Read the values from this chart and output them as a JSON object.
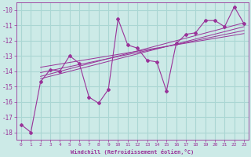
{
  "xlabel": "Windchill (Refroidissement éolien,°C)",
  "ylabel": "",
  "bg_color": "#cceae7",
  "line_color": "#993399",
  "grid_color": "#aad6d3",
  "xlim": [
    -0.5,
    23.5
  ],
  "ylim": [
    -18.5,
    -9.5
  ],
  "yticks": [
    -18,
    -17,
    -16,
    -15,
    -14,
    -13,
    -12,
    -11,
    -10
  ],
  "xticks": [
    0,
    1,
    2,
    3,
    4,
    5,
    6,
    7,
    8,
    9,
    10,
    11,
    12,
    13,
    14,
    15,
    16,
    17,
    18,
    19,
    20,
    21,
    22,
    23
  ],
  "main_x": [
    0,
    1,
    2,
    3,
    4,
    5,
    6,
    7,
    8,
    9,
    10,
    11,
    12,
    13,
    14,
    15,
    16,
    17,
    18,
    19,
    20,
    21,
    22,
    23
  ],
  "main_y": [
    -17.5,
    -18.0,
    -14.7,
    -13.9,
    -14.0,
    -13.0,
    -13.5,
    -15.7,
    -16.1,
    -15.2,
    -10.6,
    -12.3,
    -12.5,
    -13.3,
    -13.4,
    -15.3,
    -12.2,
    -11.6,
    -11.5,
    -10.7,
    -10.7,
    -11.1,
    -9.8,
    -10.9
  ],
  "reg_lines": [
    {
      "x": [
        2,
        23
      ],
      "y": [
        -14.35,
        -10.85
      ]
    },
    {
      "x": [
        2,
        23
      ],
      "y": [
        -14.5,
        -11.1
      ]
    },
    {
      "x": [
        2,
        23
      ],
      "y": [
        -14.1,
        -11.35
      ]
    },
    {
      "x": [
        2,
        23
      ],
      "y": [
        -13.75,
        -11.55
      ]
    }
  ]
}
